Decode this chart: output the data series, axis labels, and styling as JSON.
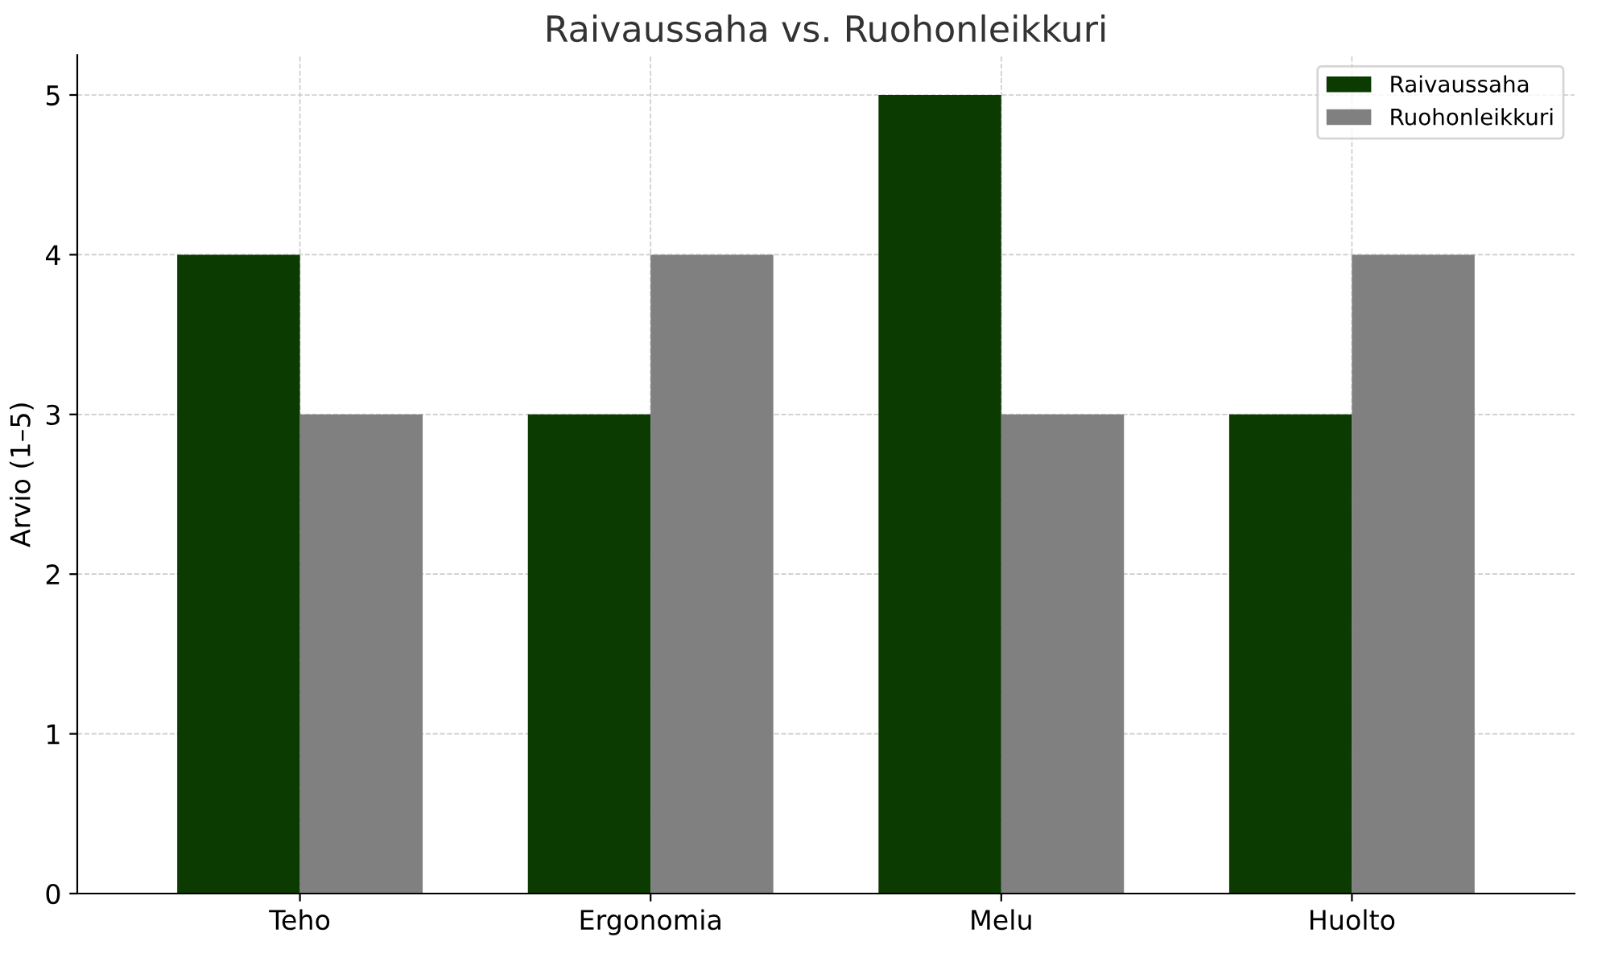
{
  "chart_data": {
    "type": "bar",
    "title": "Raivaussaha vs. Ruohonleikkuri",
    "ylabel": "Arvio (1–5)",
    "categories": [
      "Teho",
      "Ergonomia",
      "Melu",
      "Huolto"
    ],
    "series": [
      {
        "name": "Raivaussaha",
        "color": "#0b3b00",
        "values": [
          4,
          3,
          5,
          3
        ]
      },
      {
        "name": "Ruohonleikkuri",
        "color": "#808080",
        "values": [
          3,
          4,
          3,
          4
        ]
      }
    ],
    "ylim": [
      0,
      5.25
    ],
    "yticks": [
      0,
      1,
      2,
      3,
      4,
      5
    ],
    "grid": true,
    "legend": "top right"
  }
}
